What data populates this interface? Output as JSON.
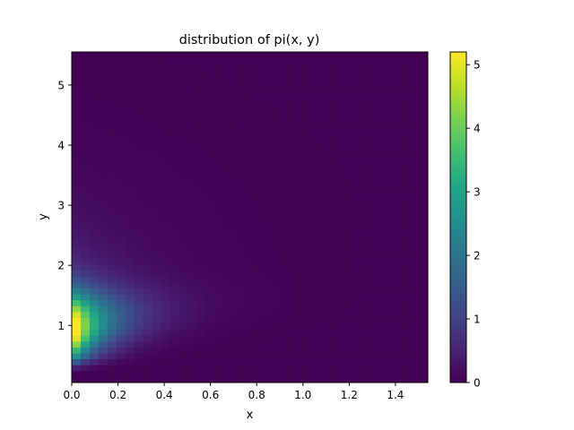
{
  "chart_data": {
    "type": "heatmap",
    "title": "distribution of pi(x, y)",
    "xlabel": "x",
    "ylabel": "y",
    "xlim": [
      0,
      1.54
    ],
    "ylim": [
      0.05,
      5.55
    ],
    "x_ticks": [
      0,
      0.2,
      0.4,
      0.6,
      0.8,
      1.0,
      1.2,
      1.4
    ],
    "x_tick_labels": [
      "0.0",
      "0.2",
      "0.4",
      "0.6",
      "0.8",
      "1.0",
      "1.2",
      "1.4"
    ],
    "y_ticks": [
      1,
      2,
      3,
      4,
      5
    ],
    "y_tick_labels": [
      "1",
      "2",
      "3",
      "4",
      "5"
    ],
    "bins": {
      "x": 40,
      "y": 56
    },
    "colormap": "viridis",
    "colorbar": {
      "vmin": 0,
      "vmax": 5.2,
      "ticks": [
        0,
        1,
        2,
        3,
        4,
        5
      ],
      "tick_labels": [
        "0",
        "1",
        "2",
        "3",
        "4",
        "5"
      ]
    },
    "peak": {
      "x": 0.02,
      "y": 1.0,
      "value": 5.2
    },
    "grid": false,
    "legend": "none"
  }
}
